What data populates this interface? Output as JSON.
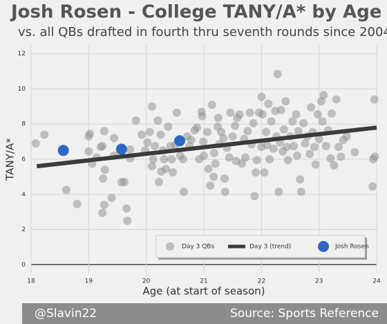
{
  "chart_data": {
    "type": "scatter",
    "title": "Josh Rosen - College TANY/A* by Age",
    "subtitle": "vs. all QBs drafted in fourth thru seventh rounds since 2004",
    "x_label": "Age (at start of season)",
    "y_label": "TANY/A*",
    "credit": "@Slavin22",
    "source": "Source: Sports Reference",
    "xlim": [
      18,
      24
    ],
    "xticks": [
      18,
      19,
      20,
      21,
      22,
      23,
      24
    ],
    "ylim": [
      -0.5,
      12.5
    ],
    "yticks": [
      0,
      2,
      4,
      6,
      8,
      10,
      12
    ],
    "grid": true,
    "legend": "lower right",
    "series": [
      {
        "name": "Day 3 QBs",
        "mode": "markers",
        "color": "#8c8c8c",
        "x": [
          18.08,
          18.23,
          18.61,
          18.8,
          19.0,
          19.0,
          19.02,
          19.06,
          19.14,
          19.21,
          19.24,
          19.27,
          19.28,
          19.25,
          19.27,
          19.24,
          19.4,
          19.44,
          19.44,
          19.57,
          19.62,
          19.66,
          19.67,
          19.72,
          19.72,
          19.82,
          19.92,
          19.98,
          20.02,
          20.06,
          20.1,
          20.1,
          20.12,
          20.15,
          20.2,
          20.22,
          20.25,
          20.26,
          20.29,
          20.31,
          20.34,
          20.38,
          20.42,
          20.44,
          20.46,
          20.5,
          20.53,
          20.59,
          20.64,
          20.65,
          20.71,
          20.75,
          20.78,
          20.84,
          20.88,
          20.92,
          20.96,
          20.97,
          20.99,
          21.0,
          21.06,
          21.08,
          21.11,
          21.14,
          21.17,
          21.18,
          21.2,
          21.24,
          21.25,
          21.27,
          21.3,
          21.34,
          21.36,
          21.37,
          21.4,
          21.44,
          21.46,
          21.5,
          21.54,
          21.56,
          21.58,
          21.62,
          21.66,
          21.7,
          21.72,
          21.76,
          21.8,
          21.83,
          21.86,
          21.88,
          21.9,
          21.92,
          21.96,
          22.0,
          22.0,
          22.02,
          22.05,
          22.08,
          22.1,
          22.12,
          22.14,
          22.17,
          22.21,
          22.24,
          22.26,
          22.28,
          22.3,
          22.32,
          22.34,
          22.37,
          22.39,
          22.42,
          22.44,
          22.46,
          22.5,
          22.54,
          22.56,
          22.6,
          22.62,
          22.64,
          22.67,
          22.69,
          22.73,
          22.76,
          22.8,
          22.84,
          22.86,
          22.89,
          22.92,
          22.94,
          22.98,
          23.0,
          23.04,
          23.06,
          23.08,
          23.12,
          23.16,
          23.2,
          23.22,
          23.26,
          23.3,
          23.34,
          23.38,
          23.42,
          23.48,
          23.62,
          23.94,
          23.96,
          23.93,
          23.97
        ],
        "values": [
          6.9,
          7.4,
          4.25,
          3.45,
          7.3,
          6.45,
          7.45,
          5.75,
          6.1,
          6.7,
          6.75,
          7.6,
          5.4,
          4.9,
          3.4,
          2.95,
          3.8,
          7.2,
          6.2,
          4.7,
          4.7,
          3.2,
          2.5,
          6.55,
          6.05,
          8.2,
          7.4,
          6.5,
          6.95,
          7.55,
          9.0,
          5.6,
          6.0,
          6.75,
          8.2,
          4.7,
          7.4,
          5.3,
          6.5,
          6.0,
          5.45,
          7.85,
          6.75,
          6.0,
          5.25,
          6.8,
          8.65,
          6.2,
          6.0,
          4.15,
          7.3,
          6.75,
          7.1,
          7.65,
          7.8,
          6.0,
          8.7,
          8.45,
          7.0,
          6.2,
          7.55,
          5.45,
          4.5,
          9.1,
          5.0,
          6.35,
          5.75,
          7.85,
          8.35,
          6.85,
          7.55,
          7.2,
          4.9,
          4.15,
          6.65,
          6.1,
          8.65,
          7.3,
          7.9,
          5.9,
          8.35,
          8.55,
          5.75,
          7.15,
          6.1,
          7.6,
          8.65,
          6.85,
          8.05,
          3.9,
          5.25,
          5.95,
          8.65,
          9.55,
          6.7,
          8.55,
          5.25,
          7.55,
          6.8,
          9.15,
          6.0,
          8.15,
          6.6,
          8.75,
          7.3,
          10.85,
          4.15,
          6.95,
          8.8,
          6.45,
          7.7,
          9.3,
          6.7,
          5.95,
          7.3,
          8.15,
          6.75,
          8.55,
          6.2,
          7.6,
          4.85,
          4.15,
          8.05,
          6.9,
          7.3,
          6.3,
          8.95,
          7.55,
          6.7,
          5.7,
          8.55,
          7.15,
          9.3,
          8.15,
          9.65,
          6.75,
          7.65,
          6.05,
          8.6,
          5.65,
          9.4,
          6.7,
          6.15,
          7.1,
          7.3,
          6.4,
          6.0,
          9.4,
          4.45,
          6.15
        ]
      },
      {
        "name": "Day 3 (trend)",
        "mode": "line",
        "color": "#3a3a3a",
        "x": [
          18.1,
          24
        ],
        "values": [
          5.6,
          7.8
        ]
      },
      {
        "name": "Josh Rosen",
        "mode": "markers",
        "color": "#2f67c4",
        "x": [
          18.56,
          19.57,
          20.58
        ],
        "values": [
          6.5,
          6.57,
          7.05
        ]
      }
    ]
  }
}
